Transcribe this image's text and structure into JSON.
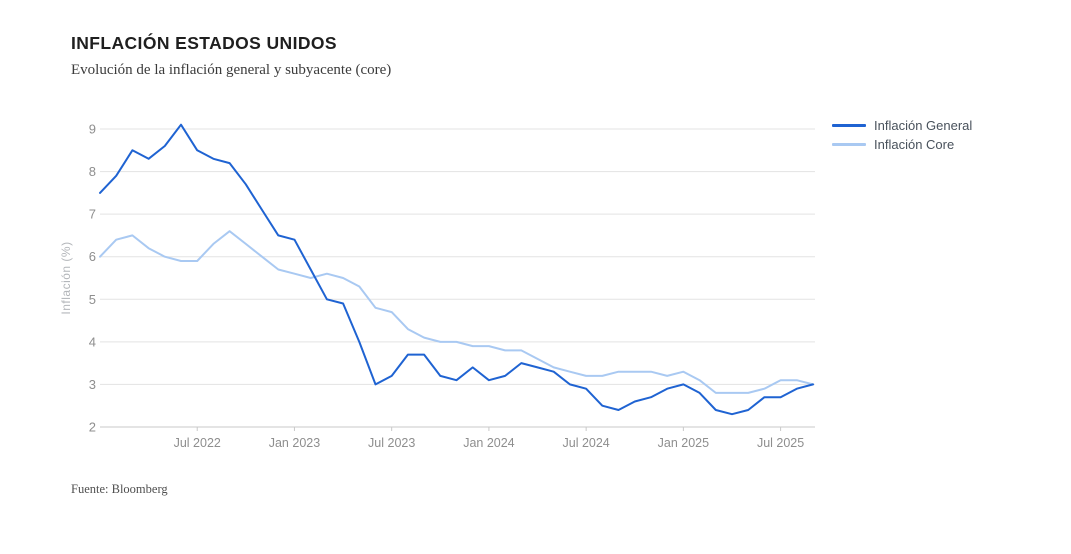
{
  "header": {
    "title": "INFLACIÓN ESTADOS UNIDOS",
    "subtitle": "Evolución de la inflación general y subyacente (core)"
  },
  "footer": {
    "source": "Fuente: Bloomberg"
  },
  "chart_data": {
    "type": "line",
    "title": "INFLACIÓN ESTADOS UNIDOS",
    "subtitle": "Evolución de la inflación general y subyacente (core)",
    "xlabel": "",
    "ylabel": "Inflación (%)",
    "ylim": [
      2,
      9
    ],
    "yticks": [
      2,
      3,
      4,
      5,
      6,
      7,
      8,
      9
    ],
    "grid": true,
    "legend_position": "top-right",
    "grid_color": "#e3e3e3",
    "axis_color": "#c9c9c9",
    "tick_label_color": "#8e8e8e",
    "axis_title_color": "#b3b6ba",
    "x": [
      "Jan 2022",
      "Feb 2022",
      "Mar 2022",
      "Apr 2022",
      "May 2022",
      "Jun 2022",
      "Jul 2022",
      "Aug 2022",
      "Sep 2022",
      "Oct 2022",
      "Nov 2022",
      "Dec 2022",
      "Jan 2023",
      "Feb 2023",
      "Mar 2023",
      "Apr 2023",
      "May 2023",
      "Jun 2023",
      "Jul 2023",
      "Aug 2023",
      "Sep 2023",
      "Oct 2023",
      "Nov 2023",
      "Dec 2023",
      "Jan 2024",
      "Feb 2024",
      "Mar 2024",
      "Apr 2024",
      "May 2024",
      "Jun 2024",
      "Jul 2024",
      "Aug 2024",
      "Sep 2024",
      "Oct 2024",
      "Nov 2024",
      "Dec 2024",
      "Jan 2025",
      "Feb 2025",
      "Mar 2025",
      "Apr 2025",
      "May 2025",
      "Jun 2025",
      "Jul 2025",
      "Aug 2025",
      "Sep 2025"
    ],
    "xticks": [
      {
        "label": "Jul 2022",
        "index": 6
      },
      {
        "label": "Jan 2023",
        "index": 12
      },
      {
        "label": "Jul 2023",
        "index": 18
      },
      {
        "label": "Jan 2024",
        "index": 24
      },
      {
        "label": "Jul 2024",
        "index": 30
      },
      {
        "label": "Jan 2025",
        "index": 36
      },
      {
        "label": "Jul 2025",
        "index": 42
      }
    ],
    "series": [
      {
        "name": "Inflación General",
        "color": "#1f63d2",
        "values": [
          7.5,
          7.9,
          8.5,
          8.3,
          8.6,
          9.1,
          8.5,
          8.3,
          8.2,
          7.7,
          7.1,
          6.5,
          6.4,
          5.7,
          5.0,
          4.9,
          4.0,
          3.0,
          3.2,
          3.7,
          3.7,
          3.2,
          3.1,
          3.4,
          3.1,
          3.2,
          3.5,
          3.4,
          3.3,
          3.0,
          2.9,
          2.5,
          2.4,
          2.6,
          2.7,
          2.9,
          3.0,
          2.8,
          2.4,
          2.3,
          2.4,
          2.7,
          2.7,
          2.9,
          3.0
        ]
      },
      {
        "name": "Inflación Core",
        "color": "#a9c9f2",
        "values": [
          6.0,
          6.4,
          6.5,
          6.2,
          6.0,
          5.9,
          5.9,
          6.3,
          6.6,
          6.3,
          6.0,
          5.7,
          5.6,
          5.5,
          5.6,
          5.5,
          5.3,
          4.8,
          4.7,
          4.3,
          4.1,
          4.0,
          4.0,
          3.9,
          3.9,
          3.8,
          3.8,
          3.6,
          3.4,
          3.3,
          3.2,
          3.2,
          3.3,
          3.3,
          3.3,
          3.2,
          3.3,
          3.1,
          2.8,
          2.8,
          2.8,
          2.9,
          3.1,
          3.1,
          3.0
        ]
      }
    ]
  }
}
